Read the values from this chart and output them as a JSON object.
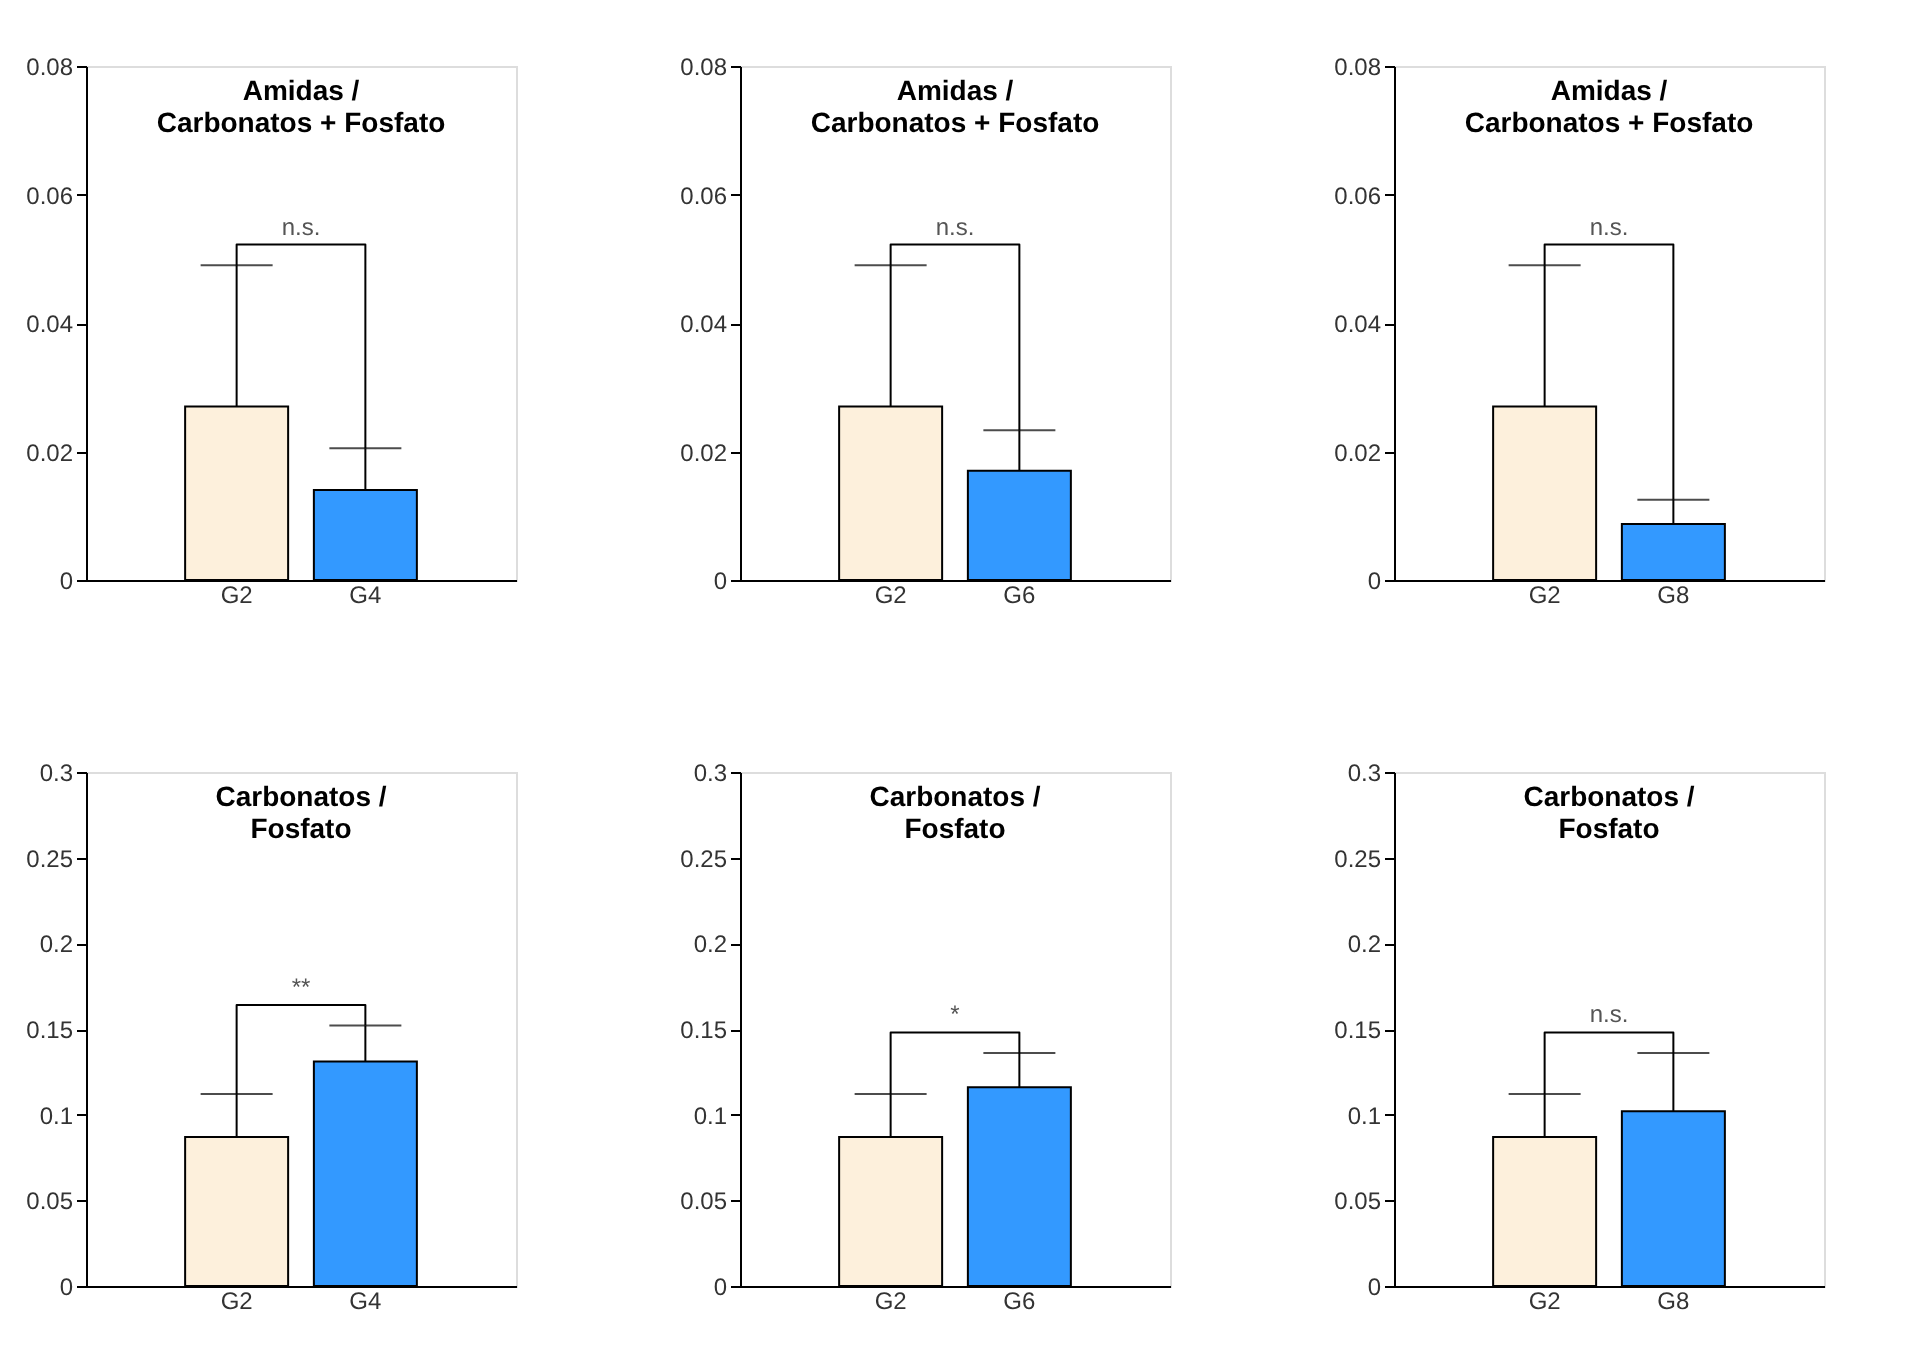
{
  "chart_data": [
    {
      "type": "bar",
      "title": "Amidas /\nCarbonatos + Fosfato",
      "categories": [
        "G2",
        "G4"
      ],
      "values": [
        0.027,
        0.014
      ],
      "colors": [
        "#fdf0dc",
        "#3399ff"
      ],
      "errors": [
        [
          0.027,
          0.049
        ],
        [
          0.014,
          0.0205
        ]
      ],
      "ylim": [
        0,
        0.08
      ],
      "yticks": [
        0,
        0.02,
        0.04,
        0.06,
        0.08
      ],
      "annotations": [
        "n.s."
      ]
    },
    {
      "type": "bar",
      "title": "Amidas /\nCarbonatos + Fosfato",
      "categories": [
        "G2",
        "G6"
      ],
      "values": [
        0.027,
        0.017
      ],
      "colors": [
        "#fdf0dc",
        "#3399ff"
      ],
      "errors": [
        [
          0.027,
          0.049
        ],
        [
          0.017,
          0.0233
        ]
      ],
      "ylim": [
        0,
        0.08
      ],
      "yticks": [
        0,
        0.02,
        0.04,
        0.06,
        0.08
      ],
      "annotations": [
        "n.s."
      ]
    },
    {
      "type": "bar",
      "title": "Amidas /\nCarbonatos + Fosfato",
      "categories": [
        "G2",
        "G8"
      ],
      "values": [
        0.027,
        0.0087
      ],
      "colors": [
        "#fdf0dc",
        "#3399ff"
      ],
      "errors": [
        [
          0.027,
          0.049
        ],
        [
          0.0087,
          0.0125
        ]
      ],
      "ylim": [
        0,
        0.08
      ],
      "yticks": [
        0,
        0.02,
        0.04,
        0.06,
        0.08
      ],
      "annotations": [
        "n.s."
      ]
    },
    {
      "type": "bar",
      "title": "Carbonatos /\nFosfato",
      "categories": [
        "G2",
        "G4"
      ],
      "values": [
        0.087,
        0.131
      ],
      "colors": [
        "#fdf0dc",
        "#3399ff"
      ],
      "errors": [
        [
          0.087,
          0.112
        ],
        [
          0.131,
          0.152
        ]
      ],
      "ylim": [
        0,
        0.3
      ],
      "yticks": [
        0,
        0.05,
        0.1,
        0.15,
        0.2,
        0.25,
        0.3
      ],
      "annotations": [
        "**"
      ]
    },
    {
      "type": "bar",
      "title": "Carbonatos /\nFosfato",
      "categories": [
        "G2",
        "G6"
      ],
      "values": [
        0.087,
        0.116
      ],
      "colors": [
        "#fdf0dc",
        "#3399ff"
      ],
      "errors": [
        [
          0.087,
          0.112
        ],
        [
          0.116,
          0.136
        ]
      ],
      "ylim": [
        0,
        0.3
      ],
      "yticks": [
        0,
        0.05,
        0.1,
        0.15,
        0.2,
        0.25,
        0.3
      ],
      "annotations": [
        "*"
      ]
    },
    {
      "type": "bar",
      "title": "Carbonatos /\nFosfato",
      "categories": [
        "G2",
        "G8"
      ],
      "values": [
        0.087,
        0.102
      ],
      "colors": [
        "#fdf0dc",
        "#3399ff"
      ],
      "errors": [
        [
          0.087,
          0.112
        ],
        [
          0.102,
          0.136
        ]
      ],
      "ylim": [
        0,
        0.3
      ],
      "yticks": [
        0,
        0.05,
        0.1,
        0.15,
        0.2,
        0.25,
        0.3
      ],
      "annotations": [
        "n.s."
      ]
    }
  ]
}
